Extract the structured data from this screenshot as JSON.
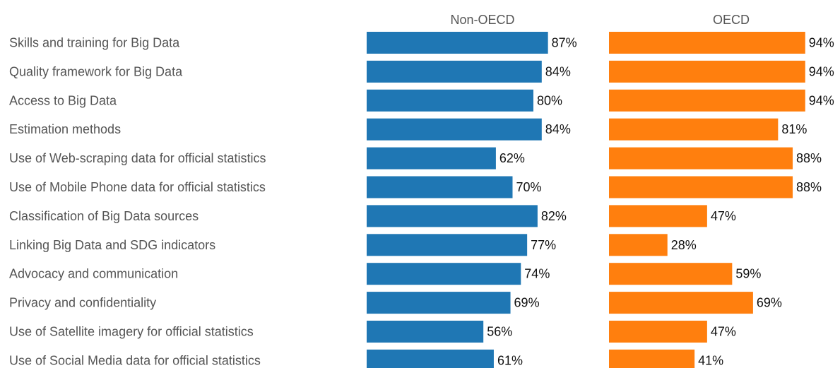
{
  "chart_data": {
    "type": "bar",
    "orientation": "horizontal",
    "layout": "side-by-side panels",
    "categories": [
      "Skills and training for Big Data",
      "Quality framework for Big Data",
      "Access to Big Data",
      "Estimation methods",
      "Use of Web-scraping data for official statistics",
      "Use of Mobile Phone data for official statistics",
      "Classification of Big Data sources",
      "Linking Big Data and SDG indicators",
      "Advocacy and communication",
      "Privacy and confidentiality",
      "Use of Satellite imagery for official statistics",
      "Use of Social Media data for official statistics"
    ],
    "series": [
      {
        "name": "Non-OECD",
        "color": "#1f77b4",
        "values": [
          87,
          84,
          80,
          84,
          62,
          70,
          82,
          77,
          74,
          69,
          56,
          61
        ],
        "labels": [
          "87%",
          "84%",
          "80%",
          "84%",
          "62%",
          "70%",
          "82%",
          "77%",
          "74%",
          "69%",
          "56%",
          "61%"
        ]
      },
      {
        "name": "OECD",
        "color": "#ff7f0e",
        "values": [
          94,
          94,
          94,
          81,
          88,
          88,
          47,
          28,
          59,
          69,
          47,
          41
        ],
        "labels": [
          "94%",
          "94%",
          "94%",
          "81%",
          "88%",
          "88%",
          "47%",
          "28%",
          "59%",
          "69%",
          "47%",
          "41%"
        ]
      }
    ],
    "value_unit": "%",
    "xlim": [
      0,
      100
    ],
    "grid": false,
    "legend": "none"
  }
}
